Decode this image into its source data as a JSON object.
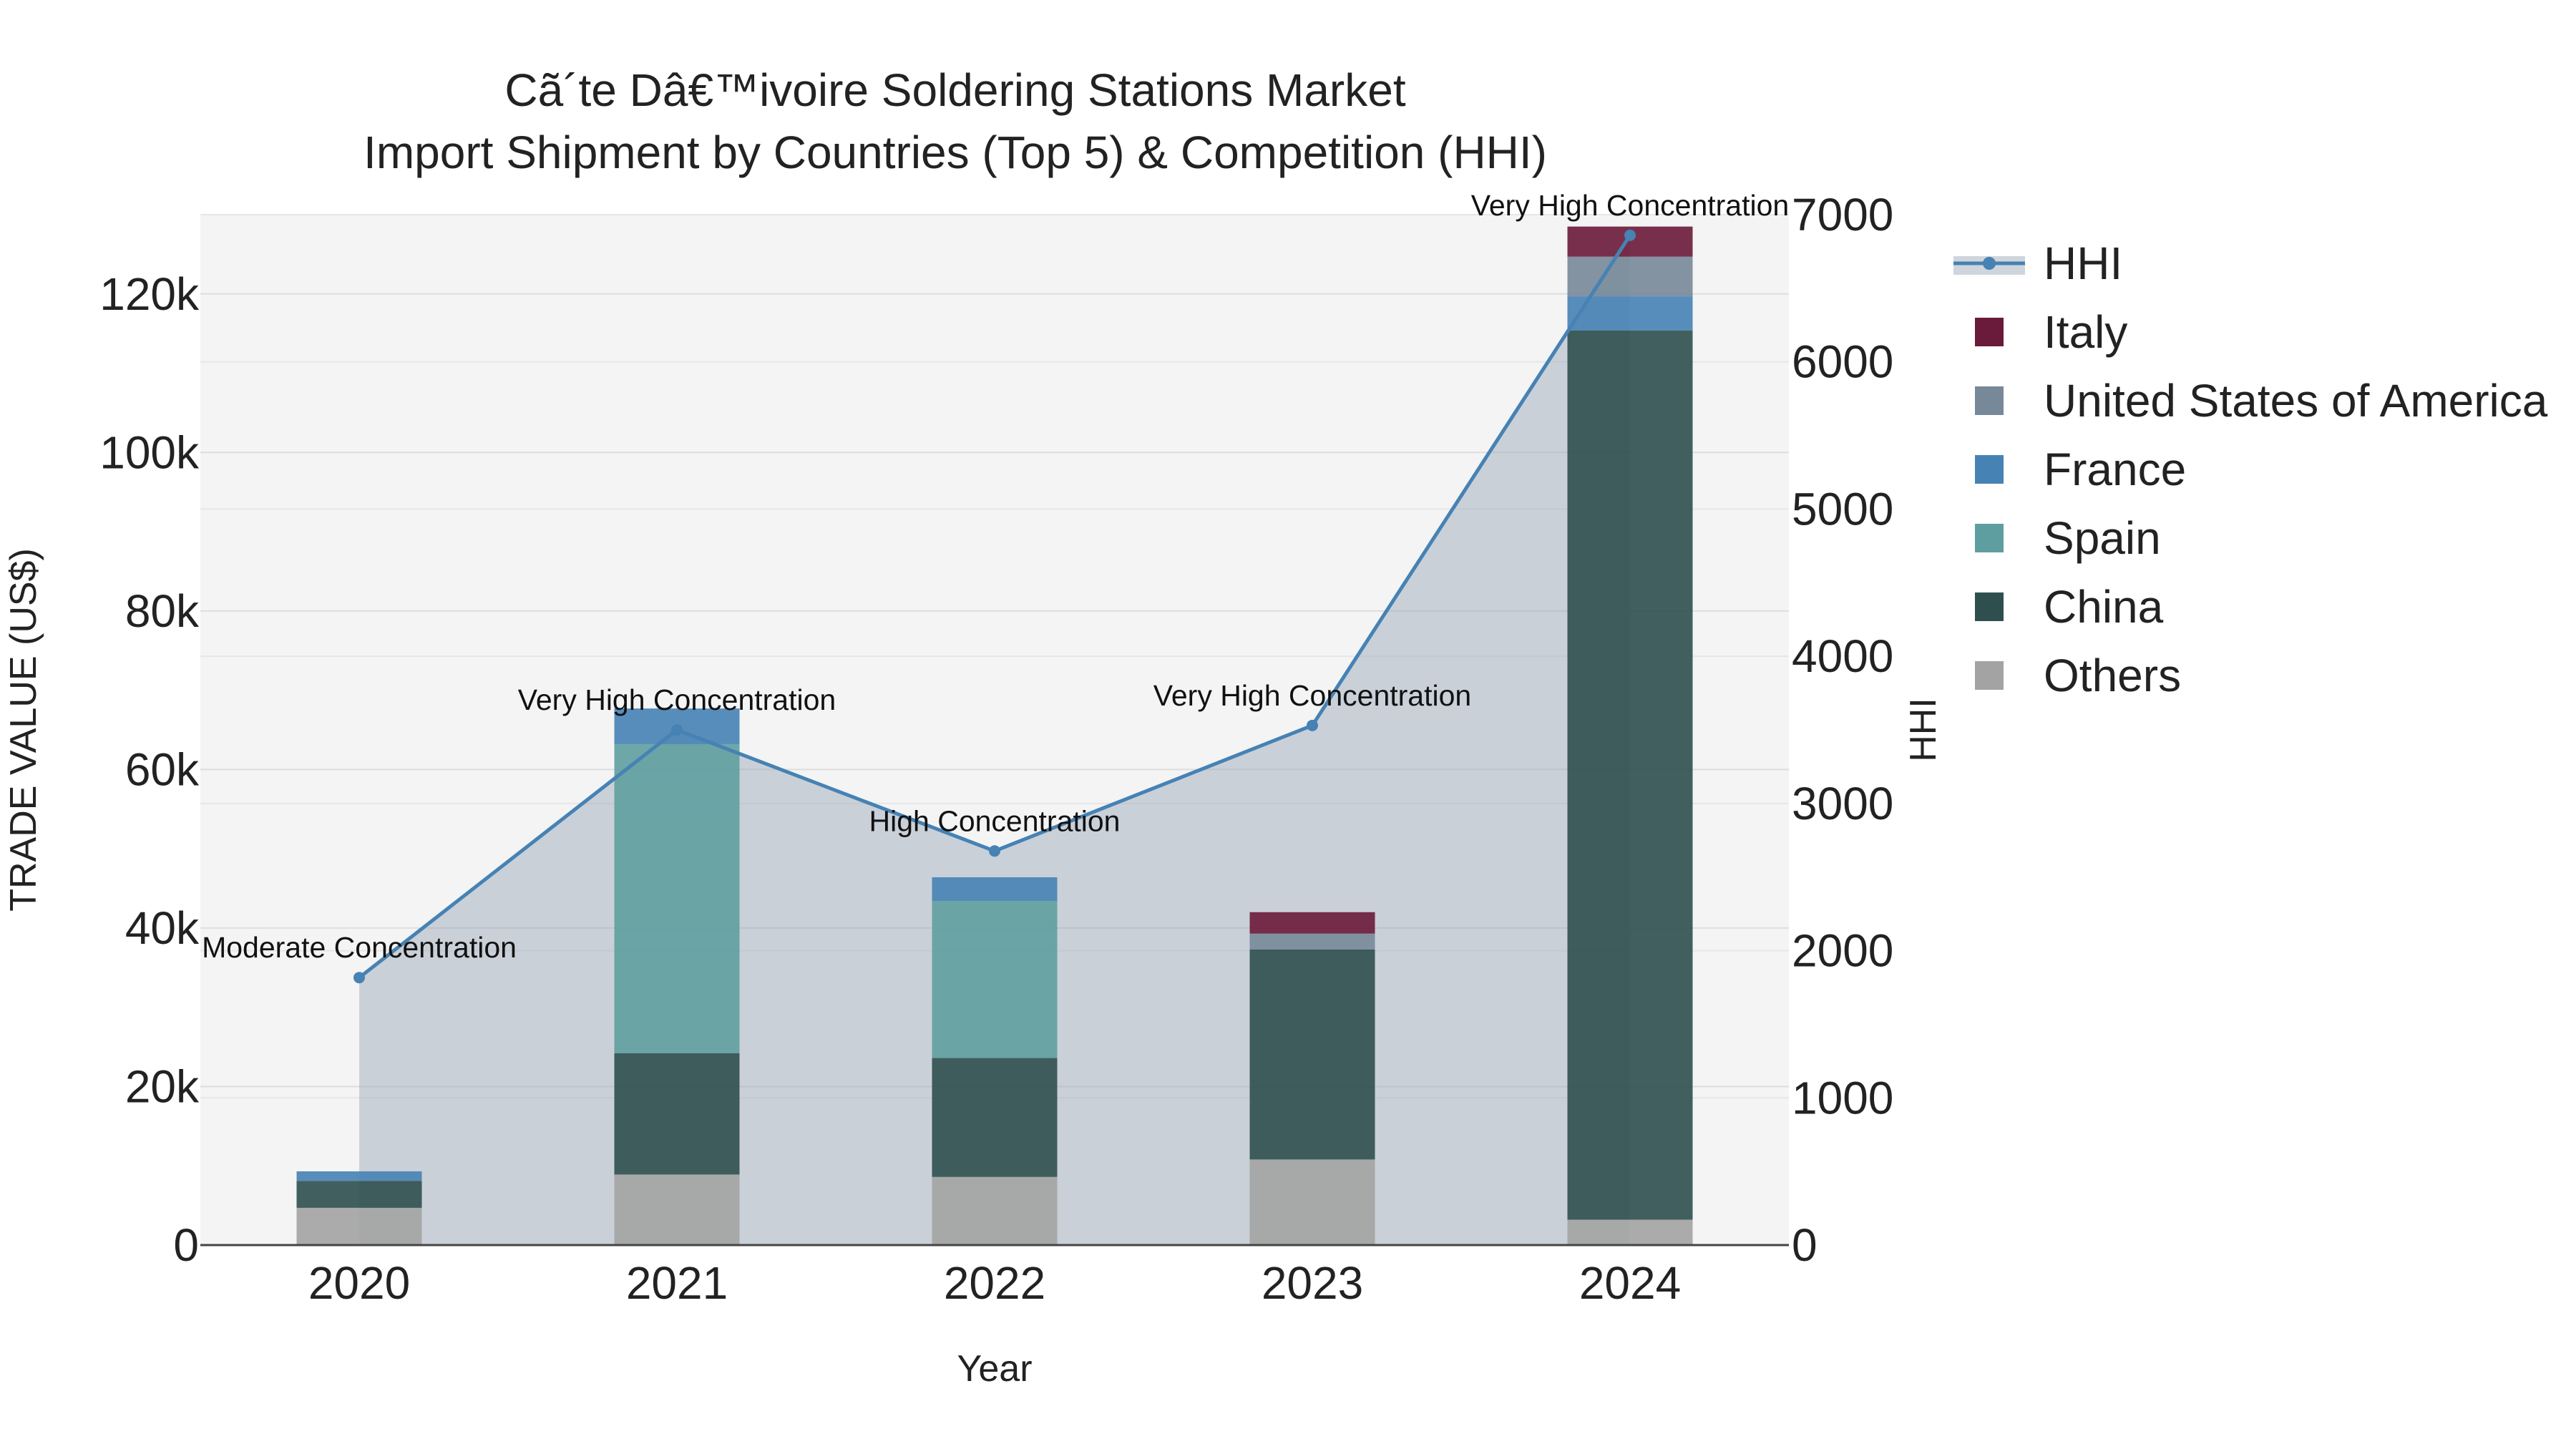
{
  "chart_data": {
    "type": "bar",
    "title": "Cã´te Dâ€™ivoire Soldering Stations Market",
    "subtitle": "Import Shipment by Countries (Top 5) & Competition (HHI)",
    "xlabel": "Year",
    "ylabel": "TRADE VALUE (US$)",
    "y2label": "HHI",
    "categories": [
      "2020",
      "2021",
      "2022",
      "2023",
      "2024"
    ],
    "ylim": [
      0,
      130000
    ],
    "y2lim": [
      0,
      7000
    ],
    "y_ticks": [
      0,
      20000,
      40000,
      60000,
      80000,
      100000,
      120000
    ],
    "y_tick_labels": [
      "0",
      "20k",
      "40k",
      "60k",
      "80k",
      "100k",
      "120k"
    ],
    "y2_ticks": [
      0,
      1000,
      2000,
      3000,
      4000,
      5000,
      6000,
      7000
    ],
    "y2_tick_labels": [
      "0",
      "1000",
      "2000",
      "3000",
      "4000",
      "5000",
      "6000",
      "7000"
    ],
    "grid": true,
    "legend_position": "right",
    "stacked": true,
    "series": [
      {
        "name": "Others",
        "color": "#a3a3a3",
        "values": [
          4700,
          8900,
          8600,
          10800,
          3200
        ]
      },
      {
        "name": "China",
        "color": "#2f4f4f",
        "values": [
          3400,
          15300,
          15000,
          26500,
          112200
        ]
      },
      {
        "name": "Spain",
        "color": "#5f9ea0",
        "values": [
          0,
          39000,
          19800,
          0,
          0
        ]
      },
      {
        "name": "France",
        "color": "#4682b4",
        "values": [
          1200,
          4500,
          3000,
          0,
          4300
        ]
      },
      {
        "name": "United States of America",
        "color": "#778899",
        "values": [
          0,
          0,
          0,
          2000,
          5000
        ]
      },
      {
        "name": "Italy",
        "color": "#6a1a3a",
        "values": [
          0,
          0,
          0,
          2700,
          3800
        ]
      }
    ],
    "hhi": {
      "name": "HHI",
      "color": "#4682b4",
      "values": [
        1817,
        3500,
        2677,
        3530,
        6860
      ],
      "labels": [
        "Moderate Concentration",
        "Very High Concentration",
        "High Concentration",
        "Very High Concentration",
        "Very High Concentration"
      ]
    },
    "legend_order": [
      "HHI",
      "Italy",
      "United States of America",
      "France",
      "Spain",
      "China",
      "Others"
    ]
  }
}
